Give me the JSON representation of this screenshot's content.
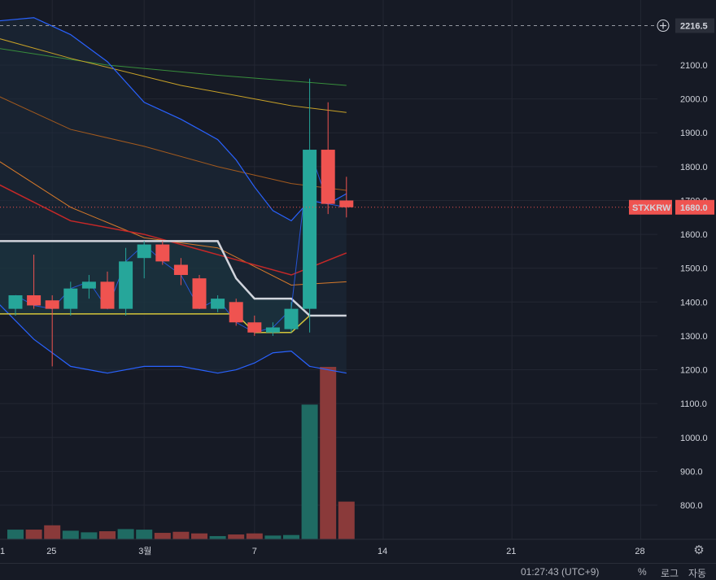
{
  "chart_data": {
    "type": "candlestick",
    "symbol": "STXKRW",
    "last_price": "1680.0",
    "crosshair_price": "2216.5",
    "ylim": [
      720,
      2240
    ],
    "y_ticks": [
      800,
      900,
      1000,
      1100,
      1200,
      1300,
      1400,
      1500,
      1600,
      1700,
      1800,
      1900,
      2000,
      2100
    ],
    "x_tick_labels": [
      {
        "label": "1",
        "i": -1
      },
      {
        "label": "25",
        "i": 2
      },
      {
        "label": "3월",
        "i": 7
      },
      {
        "label": "7",
        "i": 13
      },
      {
        "label": "14",
        "i": 20
      },
      {
        "label": "21",
        "i": 27
      },
      {
        "label": "28",
        "i": 34
      }
    ],
    "candles": [
      {
        "o": 1380,
        "h": 1410,
        "l": 1360,
        "c": 1420
      },
      {
        "o": 1420,
        "h": 1540,
        "l": 1380,
        "c": 1390
      },
      {
        "o": 1405,
        "h": 1420,
        "l": 1210,
        "c": 1380
      },
      {
        "o": 1380,
        "h": 1460,
        "l": 1360,
        "c": 1440
      },
      {
        "o": 1440,
        "h": 1480,
        "l": 1410,
        "c": 1460
      },
      {
        "o": 1460,
        "h": 1490,
        "l": 1380,
        "c": 1380
      },
      {
        "o": 1380,
        "h": 1560,
        "l": 1360,
        "c": 1520
      },
      {
        "o": 1530,
        "h": 1580,
        "l": 1470,
        "c": 1570
      },
      {
        "o": 1570,
        "h": 1580,
        "l": 1510,
        "c": 1520
      },
      {
        "o": 1510,
        "h": 1530,
        "l": 1450,
        "c": 1480
      },
      {
        "o": 1470,
        "h": 1480,
        "l": 1380,
        "c": 1380
      },
      {
        "o": 1380,
        "h": 1420,
        "l": 1370,
        "c": 1410
      },
      {
        "o": 1400,
        "h": 1410,
        "l": 1330,
        "c": 1340
      },
      {
        "o": 1340,
        "h": 1360,
        "l": 1300,
        "c": 1310
      },
      {
        "o": 1310,
        "h": 1340,
        "l": 1300,
        "c": 1325
      },
      {
        "o": 1320,
        "h": 1400,
        "l": 1310,
        "c": 1380
      },
      {
        "o": 1380,
        "h": 2060,
        "l": 1310,
        "c": 1850
      },
      {
        "o": 1850,
        "h": 1990,
        "l": 1660,
        "c": 1690
      },
      {
        "o": 1700,
        "h": 1770,
        "l": 1650,
        "c": 1680
      }
    ],
    "volume": [
      {
        "v": 90,
        "up": true
      },
      {
        "v": 90,
        "up": false
      },
      {
        "v": 130,
        "up": false
      },
      {
        "v": 80,
        "up": true
      },
      {
        "v": 65,
        "up": true
      },
      {
        "v": 75,
        "up": false
      },
      {
        "v": 95,
        "up": true
      },
      {
        "v": 90,
        "up": true
      },
      {
        "v": 60,
        "up": false
      },
      {
        "v": 70,
        "up": false
      },
      {
        "v": 55,
        "up": false
      },
      {
        "v": 30,
        "up": true
      },
      {
        "v": 45,
        "up": false
      },
      {
        "v": 55,
        "up": false
      },
      {
        "v": 35,
        "up": true
      },
      {
        "v": 40,
        "up": true
      },
      {
        "v": 1250,
        "up": true
      },
      {
        "v": 1600,
        "up": false
      },
      {
        "v": 350,
        "up": false
      }
    ],
    "bollinger_upper": [
      {
        "i": -3,
        "v": 2250
      },
      {
        "i": -1,
        "v": 2230
      },
      {
        "i": 1,
        "v": 2240
      },
      {
        "i": 3,
        "v": 2190
      },
      {
        "i": 5,
        "v": 2110
      },
      {
        "i": 7,
        "v": 1990
      },
      {
        "i": 9,
        "v": 1940
      },
      {
        "i": 11,
        "v": 1880
      },
      {
        "i": 12,
        "v": 1820
      },
      {
        "i": 13,
        "v": 1740
      },
      {
        "i": 14,
        "v": 1670
      },
      {
        "i": 15,
        "v": 1640
      },
      {
        "i": 16,
        "v": 1700
      },
      {
        "i": 17,
        "v": 1690
      },
      {
        "i": 18,
        "v": 1720
      }
    ],
    "bollinger_lower": [
      {
        "i": -1,
        "v": 1400
      },
      {
        "i": 1,
        "v": 1290
      },
      {
        "i": 3,
        "v": 1210
      },
      {
        "i": 5,
        "v": 1190
      },
      {
        "i": 7,
        "v": 1210
      },
      {
        "i": 9,
        "v": 1210
      },
      {
        "i": 11,
        "v": 1190
      },
      {
        "i": 12,
        "v": 1200
      },
      {
        "i": 13,
        "v": 1220
      },
      {
        "i": 14,
        "v": 1250
      },
      {
        "i": 15,
        "v": 1255
      },
      {
        "i": 16,
        "v": 1210
      },
      {
        "i": 17,
        "v": 1200
      },
      {
        "i": 18,
        "v": 1190
      }
    ],
    "ma_green": [
      {
        "i": -1,
        "v": 2150
      },
      {
        "i": 5,
        "v": 2100
      },
      {
        "i": 11,
        "v": 2070
      },
      {
        "i": 18,
        "v": 2040
      }
    ],
    "ma_yellow": [
      {
        "i": -1,
        "v": 2180
      },
      {
        "i": 3,
        "v": 2120
      },
      {
        "i": 9,
        "v": 2040
      },
      {
        "i": 15,
        "v": 1980
      },
      {
        "i": 18,
        "v": 1960
      }
    ],
    "ma_orange": [
      {
        "i": -1,
        "v": 2010
      },
      {
        "i": 3,
        "v": 1910
      },
      {
        "i": 7,
        "v": 1860
      },
      {
        "i": 11,
        "v": 1800
      },
      {
        "i": 15,
        "v": 1750
      },
      {
        "i": 18,
        "v": 1730
      }
    ],
    "ma_light_orange": [
      {
        "i": -1,
        "v": 1820
      },
      {
        "i": 3,
        "v": 1680
      },
      {
        "i": 7,
        "v": 1590
      },
      {
        "i": 11,
        "v": 1560
      },
      {
        "i": 15,
        "v": 1450
      },
      {
        "i": 18,
        "v": 1460
      }
    ],
    "ma_red": [
      {
        "i": -1,
        "v": 1750
      },
      {
        "i": 3,
        "v": 1640
      },
      {
        "i": 7,
        "v": 1600
      },
      {
        "i": 11,
        "v": 1540
      },
      {
        "i": 15,
        "v": 1480
      },
      {
        "i": 18,
        "v": 1545
      }
    ],
    "donchian_upper": [
      {
        "i": -1,
        "v": 1580
      },
      {
        "i": 11,
        "v": 1580
      },
      {
        "i": 12,
        "v": 1470
      },
      {
        "i": 13,
        "v": 1410
      },
      {
        "i": 15,
        "v": 1410
      },
      {
        "i": 16,
        "v": 1360
      },
      {
        "i": 18,
        "v": 1360
      }
    ],
    "donchian_lower": [
      {
        "i": -1,
        "v": 1365
      },
      {
        "i": 12,
        "v": 1365
      },
      {
        "i": 13,
        "v": 1310
      },
      {
        "i": 15,
        "v": 1310
      },
      {
        "i": 16,
        "v": 1360
      }
    ],
    "colors": {
      "background": "#161a25",
      "grid": "#232733",
      "up": "#26a69a",
      "down": "#ef5350",
      "volume_up": "#1f6b63",
      "volume_down": "#8a3a3a",
      "bollinger": "#2962ff",
      "ma_green": "#388e3c",
      "ma_yellow": "#c9a227",
      "ma_orange": "#a35a1e",
      "ma_light_orange": "#d87a2a",
      "ma_red": "#c62828",
      "donchian_upper": "#d1d4dc",
      "donchian_lower": "#d4c43a",
      "band_fill": "#1d2a3a"
    }
  },
  "ui": {
    "settings_icon": "gear-icon",
    "bottom_bar": {
      "time": "01:27:43 (UTC+9)",
      "percent": "%",
      "log": "로그",
      "auto": "자동"
    }
  }
}
